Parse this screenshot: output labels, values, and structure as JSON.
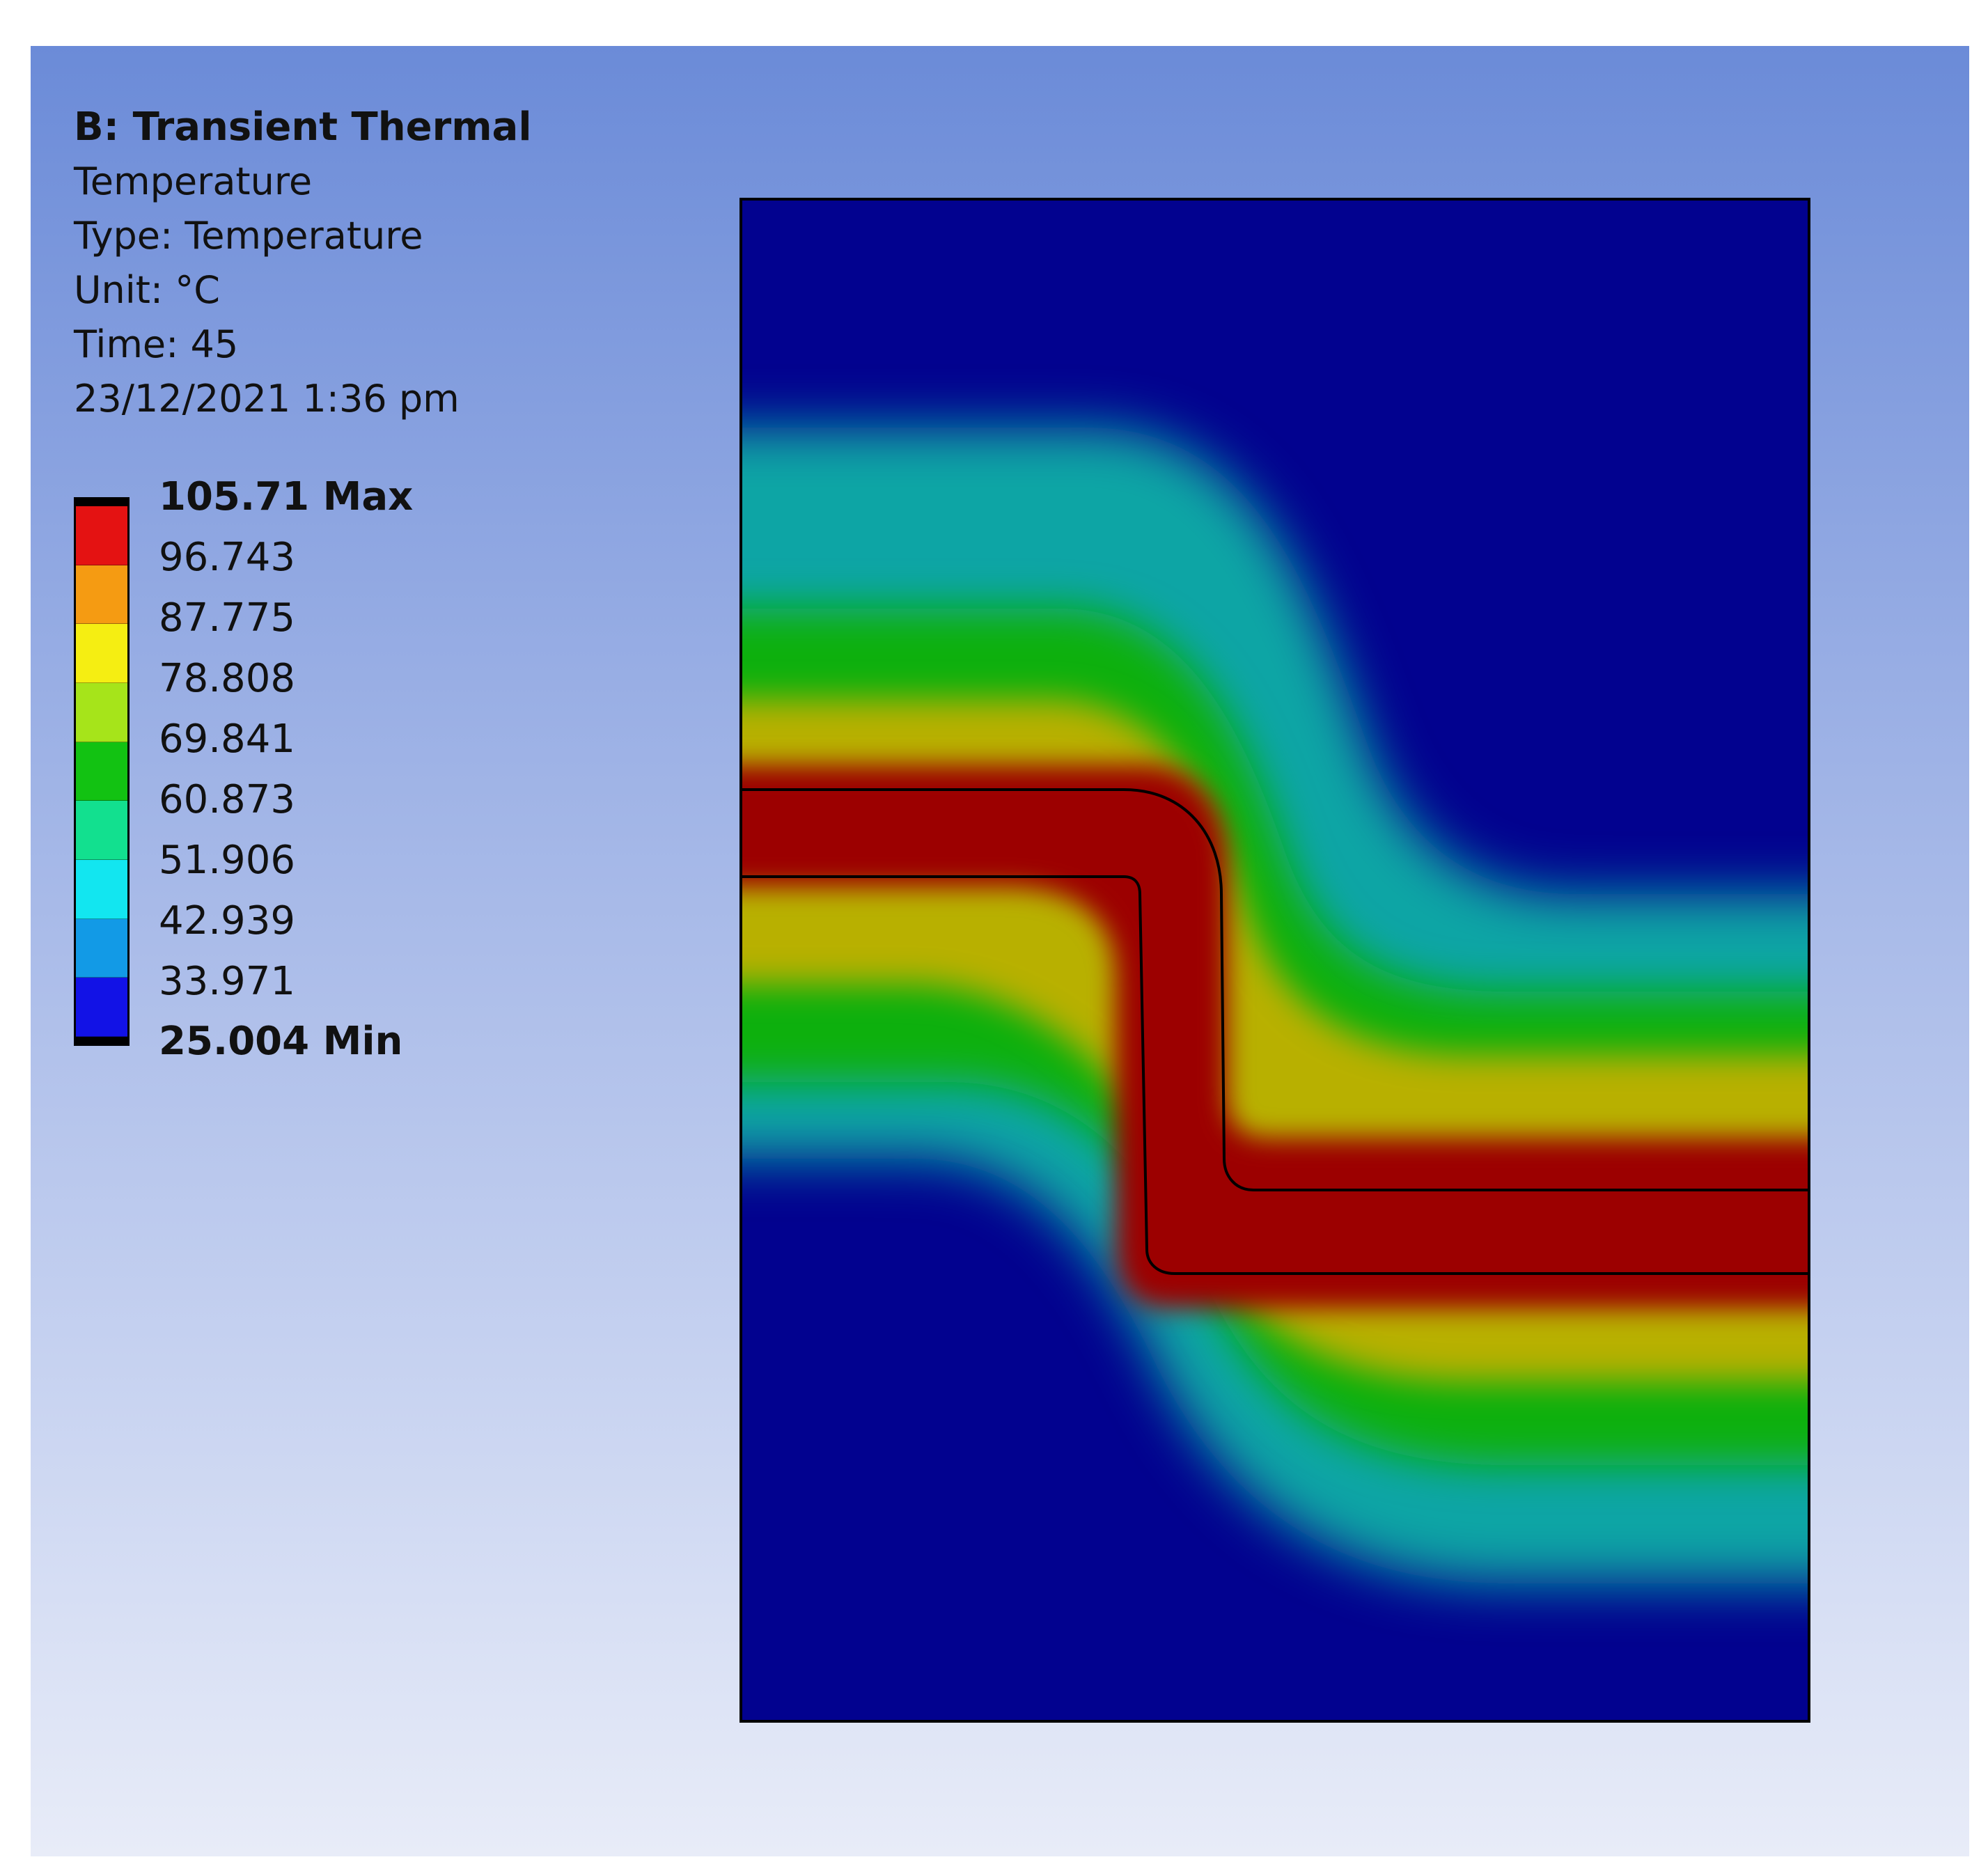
{
  "info": {
    "title": "B: Transient Thermal",
    "result_name": "Temperature",
    "type_line": "Type: Temperature",
    "unit_line": "Unit: °C",
    "time_line": "Time: 45",
    "timestamp": "23/12/2021 1:36 pm"
  },
  "legend": {
    "max_label": "105.71 Max",
    "min_label": "25.004 Min",
    "levels": [
      "96.743",
      "87.775",
      "78.808",
      "69.841",
      "60.873",
      "51.906",
      "42.939",
      "33.971"
    ],
    "band_colors": [
      "#e41212",
      "#f59b12",
      "#f5ee12",
      "#a6e41a",
      "#12c212",
      "#12e08f",
      "#12e6f0",
      "#129ae6",
      "#1212e6"
    ]
  },
  "contour_colors": {
    "min": "#02028f",
    "cyan": "#0aa5a5",
    "green": "#10b010",
    "yellow": "#b8b000",
    "max": "#9c0000"
  }
}
